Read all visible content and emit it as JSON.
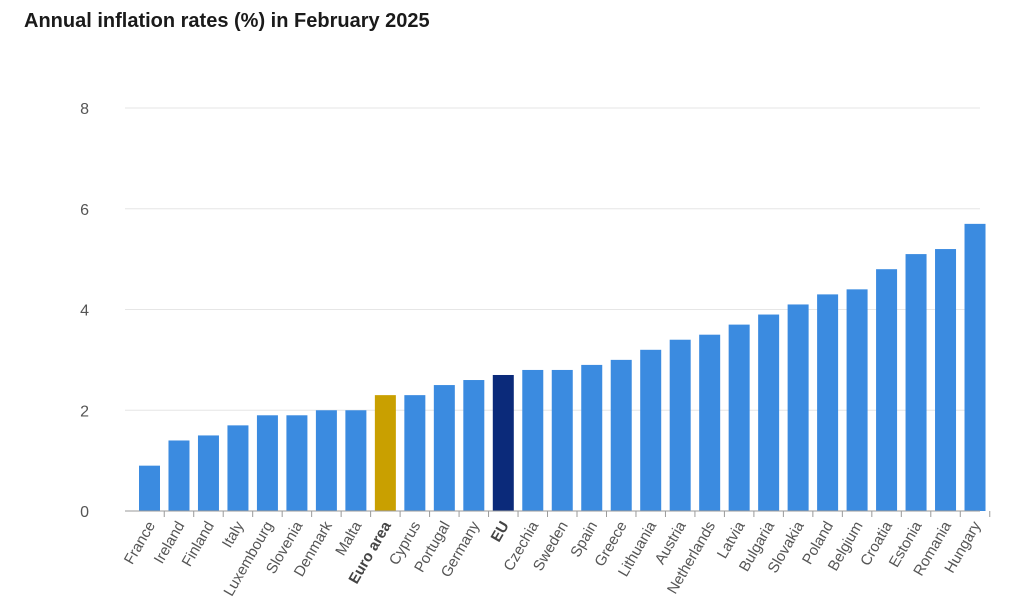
{
  "chart_data": {
    "type": "bar",
    "title": "Annual inflation rates (%) in February 2025",
    "xlabel": "",
    "ylabel": "",
    "ylim": [
      0,
      8
    ],
    "yticks": [
      0,
      2,
      4,
      6,
      8
    ],
    "grid": true,
    "categories": [
      "France",
      "Ireland",
      "Finland",
      "Italy",
      "Luxembourg",
      "Slovenia",
      "Denmark",
      "Malta",
      "Euro area",
      "Cyprus",
      "Portugal",
      "Germany",
      "EU",
      "Czechia",
      "Sweden",
      "Spain",
      "Greece",
      "Lithuania",
      "Austria",
      "Netherlands",
      "Latvia",
      "Bulgaria",
      "Slovakia",
      "Poland",
      "Belgium",
      "Croatia",
      "Estonia",
      "Romania",
      "Hungary"
    ],
    "values": [
      0.9,
      1.4,
      1.5,
      1.7,
      1.9,
      1.9,
      2.0,
      2.0,
      2.3,
      2.3,
      2.5,
      2.6,
      2.7,
      2.8,
      2.8,
      2.9,
      3.0,
      3.2,
      3.4,
      3.5,
      3.7,
      3.9,
      4.1,
      4.3,
      4.4,
      4.8,
      5.1,
      5.2,
      5.7
    ],
    "highlight": {
      "Euro area": "#c9a000",
      "EU": "#0b2a7a"
    },
    "bold_categories": [
      "Euro area",
      "EU"
    ],
    "colors": {
      "bar": "#3b8be0",
      "grid": "#e6e6e6",
      "axis": "#9a9a9a"
    }
  }
}
